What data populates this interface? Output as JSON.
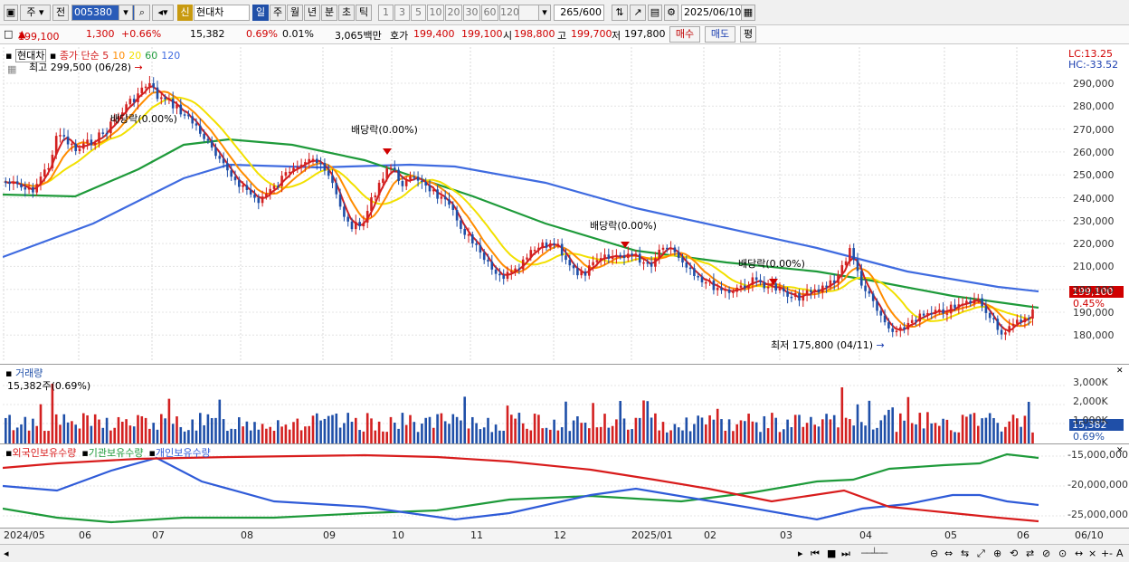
{
  "toolbar": {
    "mode_label": "주",
    "prev_label": "전",
    "code_value": "005380",
    "stock_name": "현대차",
    "new_badge": "신",
    "periods": [
      "일",
      "주",
      "월",
      "년",
      "분",
      "초",
      "틱"
    ],
    "ticks": [
      "1",
      "3",
      "5",
      "10",
      "20",
      "30",
      "60",
      "120"
    ],
    "count_value": "265",
    "count_total": "/600",
    "date_value": "2025/06/10"
  },
  "info": {
    "price": "199,100",
    "change": "1,300",
    "change_pct": "+0.66%",
    "volume": "15,382",
    "vol_pct": "0.69%",
    "turnover": "0.01%",
    "amount": "3,065백만",
    "bid_label": "호가",
    "bid1": "199,400",
    "bid2": "199,100",
    "open_label": "시",
    "open": "198,800",
    "high_label": "고",
    "high": "199,700",
    "low_label": "저",
    "low": "197,800",
    "buy_label": "매수",
    "sell_label": "매도",
    "eval_label": "평"
  },
  "price_panel": {
    "legend_name": "현대차",
    "legend_ma": "종가 단순",
    "ma_periods": [
      "5",
      "10",
      "20",
      "60",
      "120"
    ],
    "ma_colors": [
      "#d32020",
      "#ff8c00",
      "#f2e000",
      "#1e9a3a",
      "#3f6be0"
    ],
    "max_note": "최고 299,500 (06/28)",
    "min_note": "최저 175,800 (04/11)",
    "dividend_notes": [
      "배당락(0.00%)",
      "배당락(0.00%)",
      "배당락(0.00%)",
      "배당락(0.00%)"
    ],
    "lc": "LC:13.25",
    "hc": "HC:-33.52",
    "y_labels": [
      "290,000",
      "280,000",
      "270,000",
      "260,000",
      "250,000",
      "240,000",
      "230,000",
      "220,000",
      "210,000",
      "200,000",
      "190,000",
      "180,000"
    ],
    "last_price_tag": "199,100",
    "last_pct_tag": "0.45%"
  },
  "volume_panel": {
    "title": "거래량",
    "value": "15,382주(0.69%)",
    "y_labels": [
      "3,000K",
      "2,000K",
      "1,000K"
    ],
    "last_tag": "15,382",
    "last_pct": "0.69%"
  },
  "holder_panel": {
    "series": [
      "외국인보유수량",
      "기관보유수량",
      "개인보유수량"
    ],
    "colors": [
      "#d81c1c",
      "#1e9a3a",
      "#2f5bd8"
    ],
    "y_labels": [
      "-15,000,000",
      "-20,000,000",
      "-25,000,000"
    ]
  },
  "x_axis": [
    "2024/05",
    "06",
    "07",
    "08",
    "09",
    "10",
    "11",
    "12",
    "2025/01",
    "02",
    "03",
    "04",
    "05",
    "06"
  ],
  "right_date": "06/10"
}
